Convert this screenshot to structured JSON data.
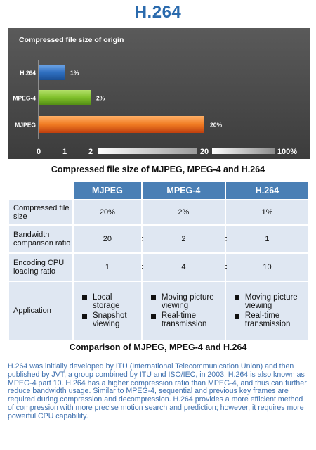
{
  "title": "H.264",
  "chart_data": {
    "type": "bar",
    "orientation": "horizontal",
    "title": "Compressed file size of origin",
    "categories": [
      "H.264",
      "MPEG-4",
      "MJPEG"
    ],
    "values": [
      1,
      2,
      20
    ],
    "value_labels": [
      "1%",
      "2%",
      "20%"
    ],
    "colors": [
      "#2f6fc0",
      "#7fbf2a",
      "#f07b22"
    ],
    "x_ticks": [
      "0",
      "1",
      "2",
      "20",
      "100%"
    ],
    "caption": "Compressed file size of MJPEG, MPEG-4 and H.264"
  },
  "table": {
    "headers": [
      "MJPEG",
      "MPEG-4",
      "H.264"
    ],
    "rows": [
      {
        "label": "Compressed file size",
        "values": [
          "20%",
          "2%",
          "1%"
        ]
      },
      {
        "label": "Bandwidth comparison ratio",
        "values": [
          "20",
          "2",
          "1"
        ],
        "separator": ":"
      },
      {
        "label": "Encoding CPU loading ratio",
        "values": [
          "1",
          "4",
          "10"
        ],
        "separator": ":"
      },
      {
        "label": "Application",
        "lists": [
          [
            "Local storage",
            "Snapshot viewing"
          ],
          [
            "Moving picture viewing",
            "Real-time transmission"
          ],
          [
            "Moving picture viewing",
            "Real-time transmission"
          ]
        ]
      }
    ],
    "caption": "Comparison of MJPEG, MPEG-4 and H.264"
  },
  "description": "H.264 was initially developed by ITU (International Telecommunication Union) and then published by JVT, a group combined by ITU and ISO/IEC, in 2003. H.264 is also known as MPEG-4 part 10. H.264 has a higher compression ratio than MPEG-4, and thus can further reduce bandwidth usage. Similar to MPEG-4, sequential and previous key frames are required during compression and decompression. H.264 provides a more efficient method of compression with more precise motion search and prediction; however, it requires more powerful CPU capability."
}
